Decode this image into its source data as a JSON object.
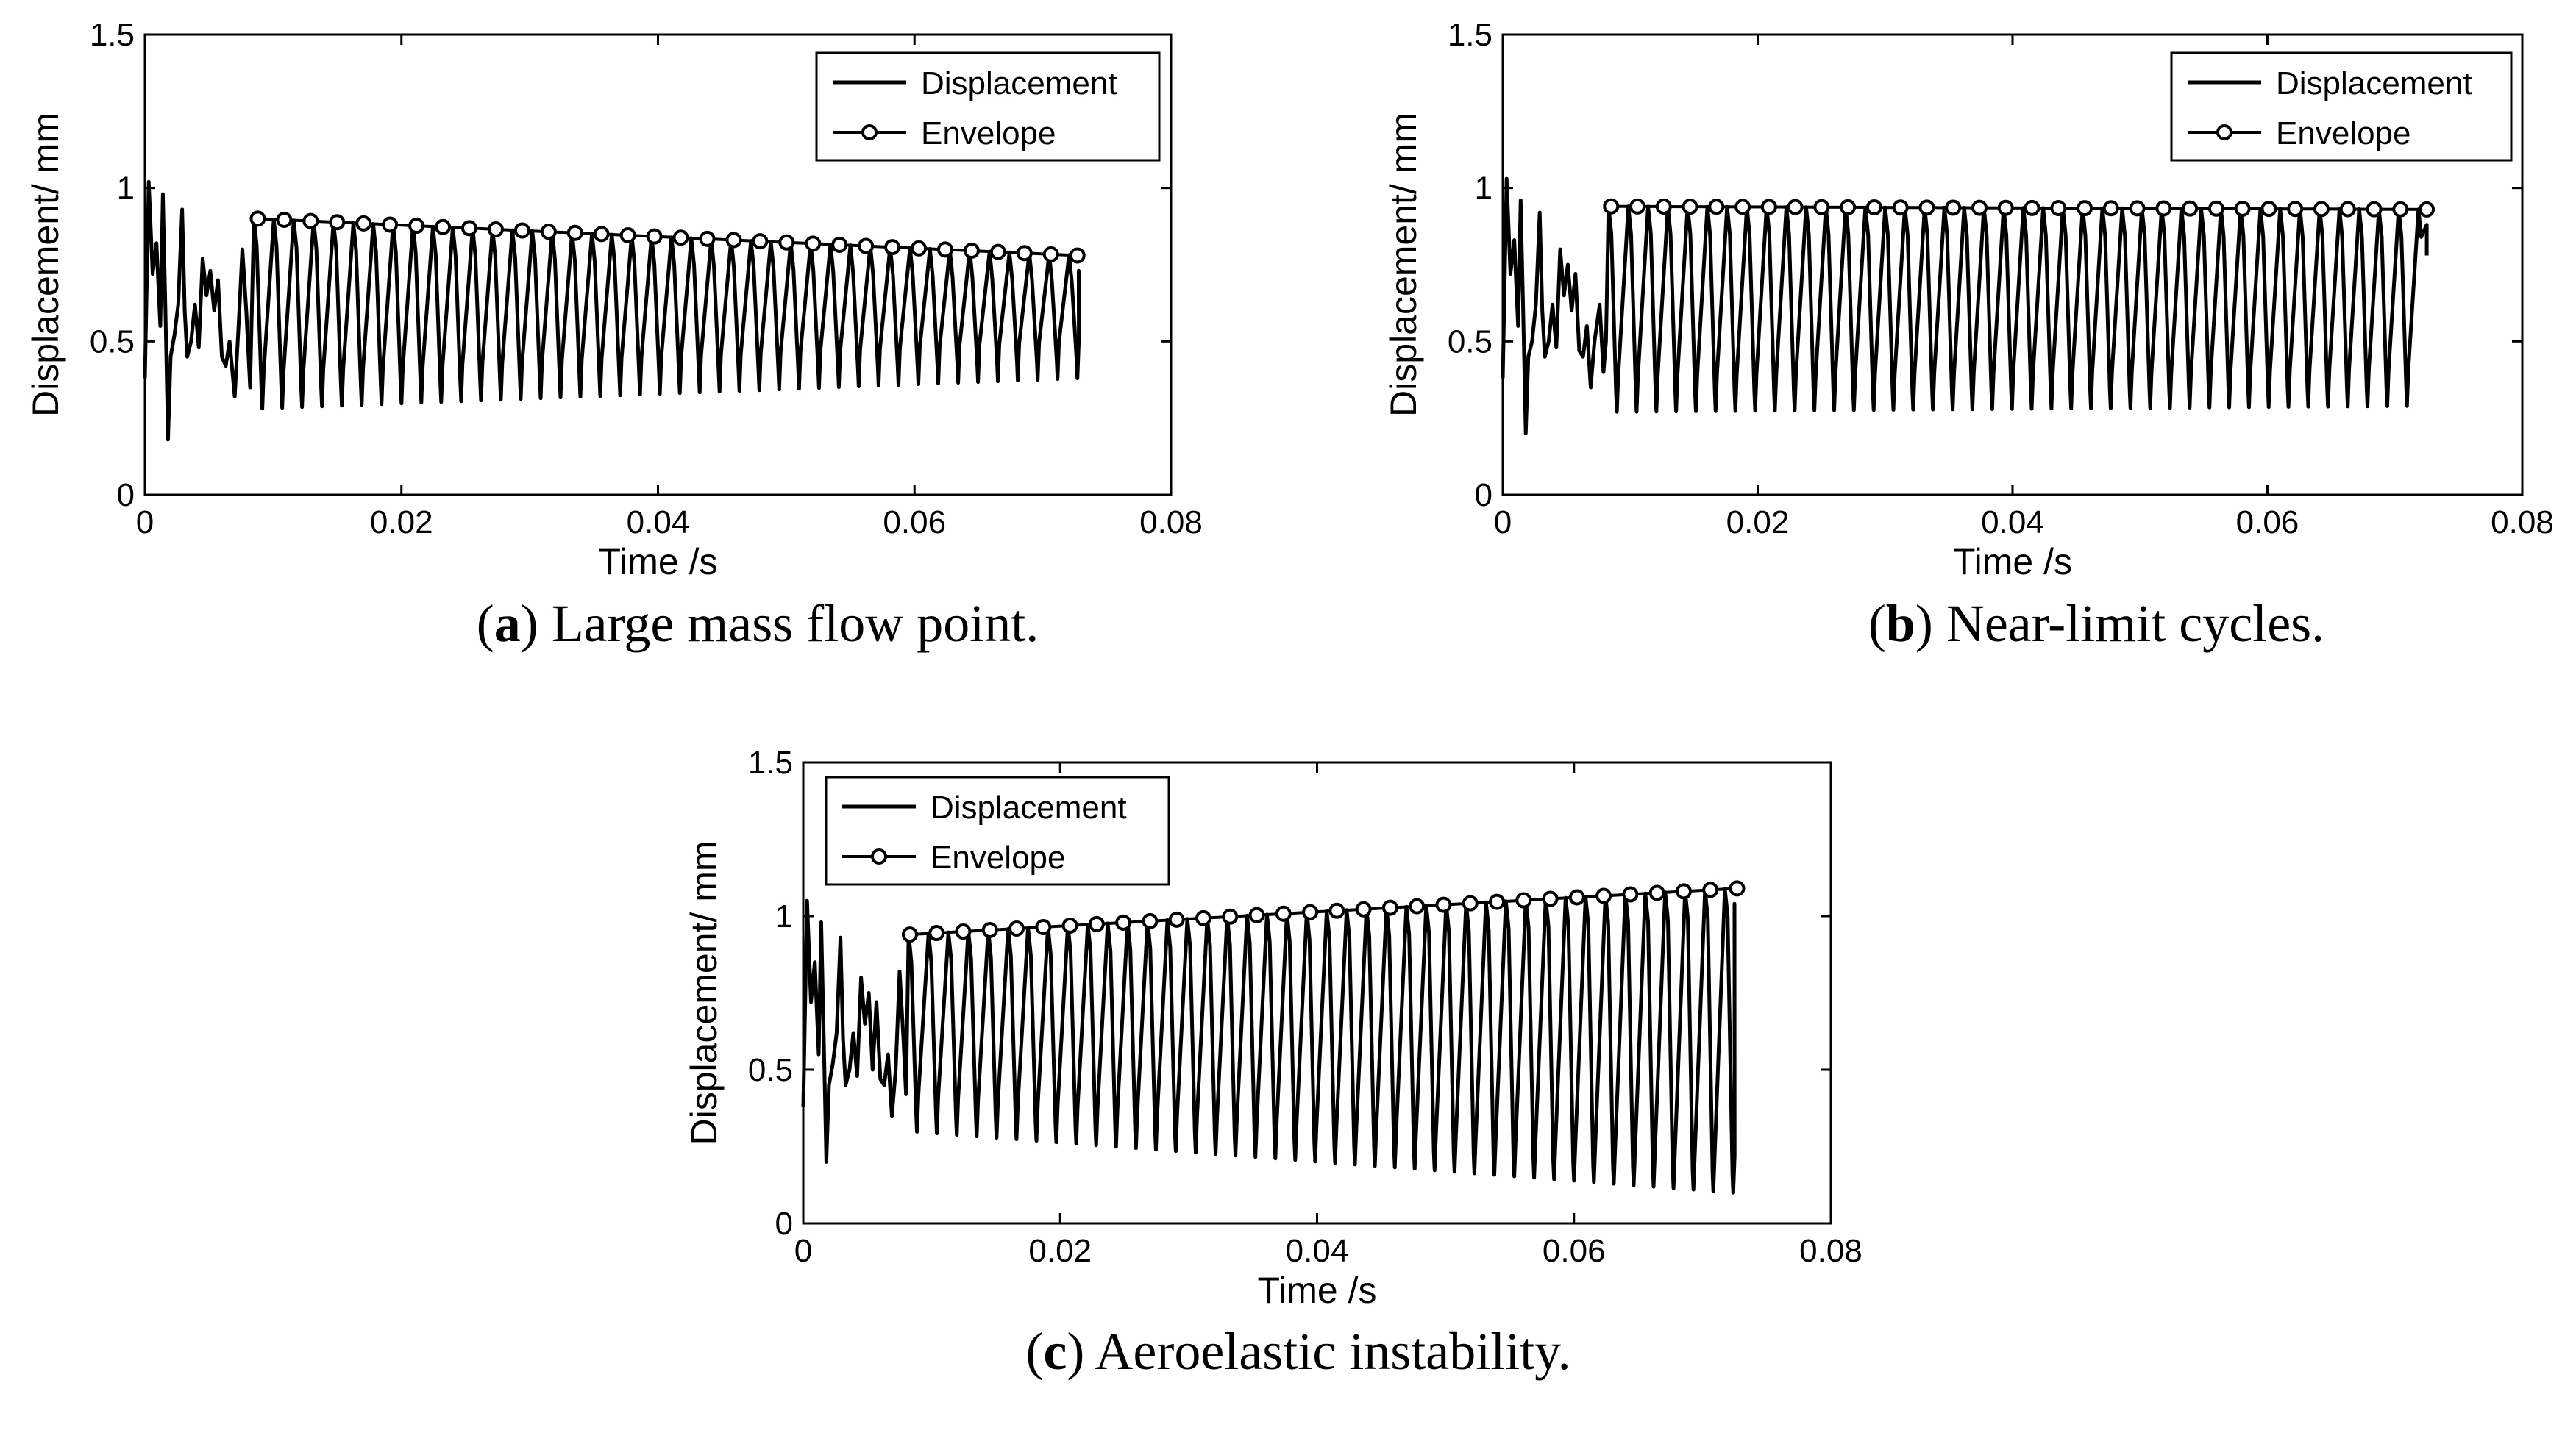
{
  "chart_data": [
    {
      "type": "line",
      "panel_letter": "a",
      "caption": "Large mass flow point.",
      "caption_open": "(",
      "caption_close": ")",
      "xlabel": "Time /s",
      "ylabel": "Displacement/ mm",
      "xlim": [
        0,
        0.08
      ],
      "ylim": [
        0,
        1.5
      ],
      "x_ticks": [
        0,
        0.02,
        0.04,
        0.06,
        0.08
      ],
      "x_tick_labels": [
        "0",
        "0.02",
        "0.04",
        "0.06",
        "0.08"
      ],
      "y_ticks": [
        0,
        0.5,
        1,
        1.5
      ],
      "y_tick_labels": [
        "0",
        "0.5",
        "1",
        "1.5"
      ],
      "legend": [
        "Displacement",
        "Envelope"
      ],
      "legend_position": "top-right",
      "series": [
        {
          "name": "Displacement",
          "kind": "oscillation",
          "transient_end": 0.0085,
          "period": 0.00155,
          "t_end": 0.0728,
          "peak": {
            "t": [
              0.0085,
              0.0728
            ],
            "v": [
              0.9,
              0.78
            ]
          },
          "trough": {
            "t": [
              0.0085,
              0.0728
            ],
            "v": [
              0.28,
              0.38
            ]
          },
          "transient": [
            [
              0,
              0.38
            ],
            [
              0.0003,
              1.02
            ],
            [
              0.0006,
              0.72
            ],
            [
              0.0009,
              0.82
            ],
            [
              0.0012,
              0.55
            ],
            [
              0.0014,
              0.98
            ],
            [
              0.0016,
              0.6
            ],
            [
              0.0018,
              0.18
            ],
            [
              0.002,
              0.45
            ],
            [
              0.0023,
              0.52
            ],
            [
              0.0026,
              0.62
            ],
            [
              0.0029,
              0.93
            ],
            [
              0.0031,
              0.6
            ],
            [
              0.0033,
              0.45
            ],
            [
              0.0036,
              0.5
            ],
            [
              0.0039,
              0.62
            ],
            [
              0.0042,
              0.48
            ],
            [
              0.0045,
              0.77
            ],
            [
              0.0048,
              0.65
            ],
            [
              0.0051,
              0.73
            ],
            [
              0.0054,
              0.6
            ],
            [
              0.0057,
              0.7
            ],
            [
              0.006,
              0.45
            ],
            [
              0.0063,
              0.42
            ],
            [
              0.0066,
              0.5
            ],
            [
              0.007,
              0.32
            ],
            [
              0.0073,
              0.55
            ],
            [
              0.0076,
              0.8
            ],
            [
              0.0079,
              0.6
            ],
            [
              0.0082,
              0.35
            ],
            [
              0.0085,
              0.9
            ]
          ]
        },
        {
          "name": "Envelope",
          "kind": "envelope",
          "t_start": 0.0088,
          "t_end": 0.0727,
          "v_start": 0.9,
          "v_end": 0.78,
          "n_points": 32
        }
      ]
    },
    {
      "type": "line",
      "panel_letter": "b",
      "caption": "Near-limit cycles.",
      "caption_open": "(",
      "caption_close": ")",
      "xlabel": "Time /s",
      "ylabel": "Displacement/ mm",
      "xlim": [
        0,
        0.08
      ],
      "ylim": [
        0,
        1.5
      ],
      "x_ticks": [
        0,
        0.02,
        0.04,
        0.06,
        0.08
      ],
      "x_tick_labels": [
        "0",
        "0.02",
        "0.04",
        "0.06",
        "0.08"
      ],
      "y_ticks": [
        0,
        0.5,
        1,
        1.5
      ],
      "y_tick_labels": [
        "0",
        "0.5",
        "1",
        "1.5"
      ],
      "legend": [
        "Displacement",
        "Envelope"
      ],
      "legend_position": "top-right",
      "series": [
        {
          "name": "Displacement",
          "kind": "oscillation",
          "transient_end": 0.0083,
          "period": 0.00155,
          "t_end": 0.0725,
          "peak": {
            "t": [
              0.0083,
              0.0725
            ],
            "v": [
              0.94,
              0.93
            ]
          },
          "trough": {
            "t": [
              0.0083,
              0.0725
            ],
            "v": [
              0.27,
              0.29
            ]
          },
          "transient": [
            [
              0,
              0.38
            ],
            [
              0.0003,
              1.03
            ],
            [
              0.0006,
              0.72
            ],
            [
              0.0009,
              0.83
            ],
            [
              0.0012,
              0.55
            ],
            [
              0.0014,
              0.96
            ],
            [
              0.0016,
              0.6
            ],
            [
              0.0018,
              0.2
            ],
            [
              0.002,
              0.45
            ],
            [
              0.0023,
              0.5
            ],
            [
              0.0026,
              0.62
            ],
            [
              0.0029,
              0.92
            ],
            [
              0.0031,
              0.6
            ],
            [
              0.0033,
              0.45
            ],
            [
              0.0036,
              0.5
            ],
            [
              0.0039,
              0.62
            ],
            [
              0.0042,
              0.48
            ],
            [
              0.0045,
              0.8
            ],
            [
              0.0048,
              0.65
            ],
            [
              0.0051,
              0.75
            ],
            [
              0.0054,
              0.6
            ],
            [
              0.0057,
              0.72
            ],
            [
              0.006,
              0.47
            ],
            [
              0.0063,
              0.45
            ],
            [
              0.0066,
              0.55
            ],
            [
              0.0069,
              0.35
            ],
            [
              0.0072,
              0.5
            ],
            [
              0.0076,
              0.62
            ],
            [
              0.0079,
              0.4
            ],
            [
              0.0081,
              0.5
            ],
            [
              0.0083,
              0.94
            ]
          ]
        },
        {
          "name": "Envelope",
          "kind": "envelope",
          "t_start": 0.0085,
          "t_end": 0.0725,
          "v_start": 0.94,
          "v_end": 0.93,
          "n_points": 32
        }
      ]
    },
    {
      "type": "line",
      "panel_letter": "c",
      "caption": "Aeroelastic instability.",
      "caption_open": "(",
      "caption_close": ")",
      "xlabel": "Time /s",
      "ylabel": "Displacement/ mm",
      "xlim": [
        0,
        0.08
      ],
      "ylim": [
        0,
        1.5
      ],
      "x_ticks": [
        0,
        0.02,
        0.04,
        0.06,
        0.08
      ],
      "x_tick_labels": [
        "0",
        "0.02",
        "0.04",
        "0.06",
        "0.08"
      ],
      "y_ticks": [
        0,
        0.5,
        1,
        1.5
      ],
      "y_tick_labels": [
        "0",
        "0.5",
        "1",
        "1.5"
      ],
      "legend": [
        "Displacement",
        "Envelope"
      ],
      "legend_position": "top-left",
      "series": [
        {
          "name": "Displacement",
          "kind": "oscillation",
          "transient_end": 0.0082,
          "period": 0.00155,
          "t_end": 0.0725,
          "peak": {
            "t": [
              0.0082,
              0.0725
            ],
            "v": [
              0.94,
              1.09
            ]
          },
          "trough": {
            "t": [
              0.0082,
              0.0725
            ],
            "v": [
              0.3,
              0.1
            ]
          },
          "transient": [
            [
              0,
              0.38
            ],
            [
              0.0003,
              1.05
            ],
            [
              0.0006,
              0.72
            ],
            [
              0.0009,
              0.85
            ],
            [
              0.0012,
              0.55
            ],
            [
              0.0014,
              0.98
            ],
            [
              0.0016,
              0.6
            ],
            [
              0.0018,
              0.2
            ],
            [
              0.002,
              0.45
            ],
            [
              0.0023,
              0.52
            ],
            [
              0.0026,
              0.62
            ],
            [
              0.0029,
              0.93
            ],
            [
              0.0031,
              0.6
            ],
            [
              0.0033,
              0.45
            ],
            [
              0.0036,
              0.5
            ],
            [
              0.0039,
              0.62
            ],
            [
              0.0042,
              0.48
            ],
            [
              0.0045,
              0.8
            ],
            [
              0.0048,
              0.65
            ],
            [
              0.0051,
              0.75
            ],
            [
              0.0054,
              0.5
            ],
            [
              0.0057,
              0.72
            ],
            [
              0.006,
              0.47
            ],
            [
              0.0063,
              0.45
            ],
            [
              0.0066,
              0.55
            ],
            [
              0.0069,
              0.35
            ],
            [
              0.0072,
              0.5
            ],
            [
              0.0075,
              0.82
            ],
            [
              0.0078,
              0.6
            ],
            [
              0.008,
              0.42
            ],
            [
              0.0082,
              0.94
            ]
          ]
        },
        {
          "name": "Envelope",
          "kind": "envelope",
          "t_start": 0.0083,
          "t_end": 0.0727,
          "v_start": 0.94,
          "v_end": 1.09,
          "n_points": 32
        }
      ]
    }
  ]
}
